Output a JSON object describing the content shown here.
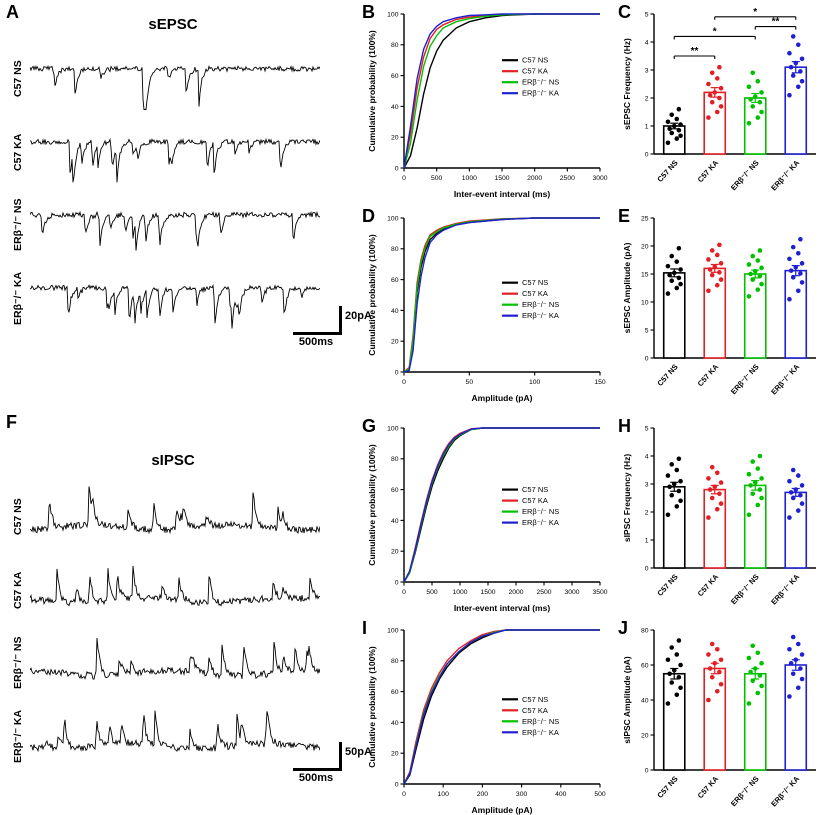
{
  "figure": {
    "background": "#ffffff"
  },
  "groups": [
    "C57 NS",
    "C57 KA",
    "ERβ⁻/⁻ NS",
    "ERβ⁻/⁻ KA"
  ],
  "colors": {
    "c57_ns": "#000000",
    "c57_ka": "#e31e24",
    "erb_ns": "#00c000",
    "erb_ka": "#2020d0"
  },
  "panels": {
    "A": {
      "letter": "A",
      "title": "sEPSC",
      "traces": [
        {
          "label": "C57 NS",
          "seed": 101,
          "spikes": 9,
          "dir": "down"
        },
        {
          "label": "C57 KA",
          "seed": 202,
          "spikes": 17,
          "dir": "down"
        },
        {
          "label": "ERβ⁻/⁻ NS",
          "seed": 303,
          "spikes": 13,
          "dir": "down"
        },
        {
          "label": "ERβ⁻/⁻ KA",
          "seed": 404,
          "spikes": 21,
          "dir": "down"
        }
      ],
      "scale": {
        "v": "20pA",
        "h": "500ms"
      }
    },
    "F": {
      "letter": "F",
      "title": "sIPSC",
      "traces": [
        {
          "label": "C57 NS",
          "seed": 505,
          "spikes": 13,
          "dir": "up"
        },
        {
          "label": "C57 KA",
          "seed": 606,
          "spikes": 12,
          "dir": "up"
        },
        {
          "label": "ERβ⁻/⁻ NS",
          "seed": 707,
          "spikes": 15,
          "dir": "up"
        },
        {
          "label": "ERβ⁻/⁻ KA",
          "seed": 808,
          "spikes": 14,
          "dir": "up"
        }
      ],
      "scale": {
        "v": "50pA",
        "h": "500ms"
      }
    },
    "B": {
      "letter": "B"
    },
    "C": {
      "letter": "C"
    },
    "D": {
      "letter": "D"
    },
    "E": {
      "letter": "E"
    },
    "G": {
      "letter": "G"
    },
    "H": {
      "letter": "H"
    },
    "I": {
      "letter": "I"
    },
    "J": {
      "letter": "J"
    }
  },
  "chart_data": [
    {
      "id": "B",
      "type": "line",
      "subtype": "cumulative",
      "xlabel": "Inter-event interval (ms)",
      "ylabel": "Cumulative probability (100%)",
      "xlim": [
        0,
        3000
      ],
      "xticks": [
        0,
        500,
        1000,
        1500,
        2000,
        2500,
        3000
      ],
      "ylim": [
        0,
        100
      ],
      "yticks": [
        0,
        20,
        40,
        60,
        80,
        100
      ],
      "legend_pos": [
        0.5,
        0.3
      ],
      "series": [
        {
          "name": "C57 NS",
          "color": "#000000",
          "x": [
            0,
            100,
            200,
            300,
            400,
            500,
            600,
            800,
            1000,
            1250,
            1500,
            2000,
            2500,
            3000
          ],
          "y": [
            0,
            8,
            26,
            48,
            65,
            76,
            83,
            91,
            95,
            97.5,
            99,
            100,
            100,
            100
          ]
        },
        {
          "name": "C57 KA",
          "color": "#e31e24",
          "x": [
            0,
            100,
            200,
            300,
            400,
            500,
            600,
            800,
            1000,
            1250,
            1500,
            2000,
            2500,
            3000
          ],
          "y": [
            0,
            22,
            52,
            72,
            84,
            90,
            93,
            96.5,
            98,
            99,
            99.8,
            100,
            100,
            100
          ]
        },
        {
          "name": "ERβ⁻/⁻ NS",
          "color": "#00c000",
          "x": [
            0,
            100,
            200,
            300,
            400,
            500,
            600,
            800,
            1000,
            1250,
            1500,
            2000,
            2500,
            3000
          ],
          "y": [
            0,
            16,
            44,
            66,
            79,
            86,
            91,
            95,
            97,
            98.5,
            99.5,
            100,
            100,
            100
          ]
        },
        {
          "name": "ERβ⁻/⁻ KA",
          "color": "#2020d0",
          "x": [
            0,
            100,
            200,
            300,
            400,
            500,
            600,
            800,
            1000,
            1250,
            1500,
            2000,
            2500,
            3000
          ],
          "y": [
            0,
            27,
            58,
            77,
            87,
            92,
            95,
            97.5,
            99,
            99.5,
            100,
            100,
            100,
            100
          ]
        }
      ]
    },
    {
      "id": "C",
      "type": "bar",
      "ylabel": "sEPSC Frequency (Hz)",
      "ylim": [
        0,
        5
      ],
      "yticks": [
        0,
        1,
        2,
        3,
        4,
        5
      ],
      "categories": [
        "C57 NS",
        "C57 KA",
        "ERβ⁻/⁻ NS",
        "ERβ⁻/⁻ KA"
      ],
      "colors": [
        "#000000",
        "#e31e24",
        "#00c000",
        "#2020d0"
      ],
      "means": [
        1.0,
        2.2,
        2.0,
        3.1
      ],
      "sem": [
        0.1,
        0.17,
        0.16,
        0.2
      ],
      "points": [
        [
          0.4,
          0.55,
          0.65,
          0.75,
          0.85,
          0.9,
          1.0,
          1.05,
          1.15,
          1.25,
          1.4,
          1.6
        ],
        [
          1.3,
          1.5,
          1.7,
          1.85,
          2.0,
          2.1,
          2.2,
          2.35,
          2.5,
          2.7,
          2.9,
          3.1
        ],
        [
          1.1,
          1.3,
          1.5,
          1.7,
          1.85,
          1.95,
          2.05,
          2.2,
          2.4,
          2.6,
          2.9
        ],
        [
          2.1,
          2.4,
          2.6,
          2.8,
          2.95,
          3.1,
          3.25,
          3.4,
          3.6,
          3.9,
          4.2
        ]
      ],
      "significance": [
        {
          "from": 0,
          "to": 1,
          "label": "**",
          "y": 3.5
        },
        {
          "from": 0,
          "to": 2,
          "label": "*",
          "y": 4.2
        },
        {
          "from": 2,
          "to": 3,
          "label": "**",
          "y": 4.55
        },
        {
          "from": 1,
          "to": 3,
          "label": "*",
          "y": 4.9
        }
      ]
    },
    {
      "id": "D",
      "type": "line",
      "subtype": "cumulative",
      "xlabel": "Amplitude (pA)",
      "ylabel": "Cumulative probability (100%)",
      "xlim": [
        0,
        150
      ],
      "xticks": [
        0,
        50,
        100,
        150
      ],
      "ylim": [
        0,
        100
      ],
      "yticks": [
        0,
        20,
        40,
        60,
        80,
        100
      ],
      "legend_pos": [
        0.5,
        0.42
      ],
      "series": [
        {
          "name": "C57 NS",
          "color": "#000000",
          "x": [
            0,
            4,
            7,
            10,
            13,
            16,
            20,
            25,
            30,
            40,
            50,
            75,
            100,
            150
          ],
          "y": [
            0,
            2,
            18,
            52,
            68,
            78,
            86,
            90,
            92.5,
            95.5,
            97,
            99,
            100,
            100
          ]
        },
        {
          "name": "C57 KA",
          "color": "#e31e24",
          "x": [
            0,
            4,
            7,
            10,
            13,
            16,
            20,
            25,
            30,
            40,
            50,
            75,
            100,
            150
          ],
          "y": [
            0,
            3,
            24,
            58,
            73,
            82,
            89,
            92,
            94,
            96.5,
            98,
            99.5,
            100,
            100
          ]
        },
        {
          "name": "ERβ⁻/⁻ NS",
          "color": "#00c000",
          "x": [
            0,
            4,
            7,
            10,
            13,
            16,
            20,
            25,
            30,
            40,
            50,
            75,
            100,
            150
          ],
          "y": [
            0,
            2,
            21,
            55,
            71,
            80,
            88,
            91,
            93.5,
            96,
            97.5,
            99.3,
            100,
            100
          ]
        },
        {
          "name": "ERβ⁻/⁻ KA",
          "color": "#2020d0",
          "x": [
            0,
            4,
            7,
            10,
            13,
            16,
            20,
            25,
            30,
            40,
            50,
            75,
            100,
            150
          ],
          "y": [
            0,
            1,
            14,
            44,
            62,
            74,
            84,
            89,
            92,
            95.5,
            97,
            99,
            100,
            100
          ]
        }
      ]
    },
    {
      "id": "E",
      "type": "bar",
      "ylabel": "sEPSC Amplitude (pA)",
      "ylim": [
        0,
        25
      ],
      "yticks": [
        0,
        5,
        10,
        15,
        20,
        25
      ],
      "categories": [
        "C57 NS",
        "C57 KA",
        "ERβ⁻/⁻ NS",
        "ERβ⁻/⁻ KA"
      ],
      "colors": [
        "#000000",
        "#e31e24",
        "#00c000",
        "#2020d0"
      ],
      "means": [
        15.2,
        16.0,
        15.0,
        15.6
      ],
      "sem": [
        0.7,
        0.7,
        0.7,
        0.9
      ],
      "points": [
        [
          11.5,
          12.5,
          13.2,
          13.8,
          14.3,
          14.8,
          15.2,
          15.8,
          16.4,
          17.2,
          18.2,
          19.6
        ],
        [
          12,
          13,
          14,
          14.8,
          15.3,
          15.8,
          16.3,
          16.9,
          17.6,
          18.4,
          19.2,
          20.2
        ],
        [
          11,
          12.2,
          13.2,
          14,
          14.6,
          15,
          15.5,
          16.1,
          16.7,
          17.4,
          18.2,
          19.2
        ],
        [
          10.5,
          12,
          13.5,
          14.4,
          15.1,
          15.6,
          16.2,
          16.9,
          17.7,
          18.7,
          19.8,
          21.2
        ]
      ],
      "significance": []
    },
    {
      "id": "G",
      "type": "line",
      "subtype": "cumulative",
      "xlabel": "Inter-event interval (ms)",
      "ylabel": "Cumulative probability (100%)",
      "xlim": [
        0,
        3500
      ],
      "xticks": [
        0,
        500,
        1000,
        1500,
        2000,
        2500,
        3000,
        3500
      ],
      "ylim": [
        0,
        100
      ],
      "yticks": [
        0,
        20,
        40,
        60,
        80,
        100
      ],
      "legend_pos": [
        0.5,
        0.4
      ],
      "series": [
        {
          "name": "C57 NS",
          "color": "#000000",
          "x": [
            0,
            100,
            200,
            300,
            400,
            500,
            600,
            700,
            800,
            900,
            1000,
            1200,
            1400,
            3500
          ],
          "y": [
            0,
            6,
            19,
            34,
            49,
            62,
            72,
            80,
            87,
            92,
            95,
            99,
            100,
            100
          ]
        },
        {
          "name": "C57 KA",
          "color": "#e31e24",
          "x": [
            0,
            100,
            200,
            300,
            400,
            500,
            600,
            700,
            800,
            900,
            1000,
            1200,
            1400,
            3500
          ],
          "y": [
            0,
            7,
            22,
            38,
            53,
            66,
            76,
            84,
            90,
            94,
            96.5,
            99.5,
            100,
            100
          ]
        },
        {
          "name": "ERβ⁻/⁻ NS",
          "color": "#00c000",
          "x": [
            0,
            100,
            200,
            300,
            400,
            500,
            600,
            700,
            800,
            900,
            1000,
            1200,
            1400,
            3500
          ],
          "y": [
            0,
            6,
            20,
            36,
            51,
            64,
            74,
            82,
            88,
            93,
            95.5,
            99,
            100,
            100
          ]
        },
        {
          "name": "ERβ⁻/⁻ KA",
          "color": "#2020d0",
          "x": [
            0,
            100,
            200,
            300,
            400,
            500,
            600,
            700,
            800,
            900,
            1000,
            1200,
            1400,
            3500
          ],
          "y": [
            0,
            7,
            21,
            37,
            52,
            65,
            75,
            83,
            89,
            93.5,
            96,
            99.3,
            100,
            100
          ]
        }
      ]
    },
    {
      "id": "H",
      "type": "bar",
      "ylabel": "sIPSC Frequency (Hz)",
      "ylim": [
        0,
        5
      ],
      "yticks": [
        0,
        1,
        2,
        3,
        4,
        5
      ],
      "categories": [
        "C57 NS",
        "C57 KA",
        "ERβ⁻/⁻ NS",
        "ERβ⁻/⁻ KA"
      ],
      "colors": [
        "#000000",
        "#e31e24",
        "#00c000",
        "#2020d0"
      ],
      "means": [
        2.9,
        2.8,
        2.95,
        2.7
      ],
      "sem": [
        0.16,
        0.15,
        0.17,
        0.14
      ],
      "points": [
        [
          1.9,
          2.2,
          2.4,
          2.6,
          2.75,
          2.9,
          3.0,
          3.1,
          3.3,
          3.5,
          3.7,
          3.9
        ],
        [
          1.8,
          2.1,
          2.3,
          2.5,
          2.65,
          2.8,
          2.9,
          3.05,
          3.2,
          3.4,
          3.6
        ],
        [
          1.9,
          2.25,
          2.5,
          2.65,
          2.8,
          2.95,
          3.05,
          3.2,
          3.35,
          3.55,
          3.8,
          4.0
        ],
        [
          1.8,
          2.05,
          2.3,
          2.5,
          2.6,
          2.7,
          2.8,
          2.95,
          3.1,
          3.3,
          3.5
        ]
      ],
      "significance": []
    },
    {
      "id": "I",
      "type": "line",
      "subtype": "cumulative",
      "xlabel": "Amplitude (pA)",
      "ylabel": "Cumulative probability (100%)",
      "xlim": [
        0,
        500
      ],
      "xticks": [
        0,
        100,
        200,
        300,
        400,
        500
      ],
      "ylim": [
        0,
        100
      ],
      "yticks": [
        0,
        20,
        40,
        60,
        80,
        100
      ],
      "legend_pos": [
        0.5,
        0.45
      ],
      "series": [
        {
          "name": "C57 NS",
          "color": "#000000",
          "x": [
            0,
            15,
            30,
            50,
            70,
            90,
            110,
            140,
            170,
            200,
            230,
            260,
            500
          ],
          "y": [
            0,
            6,
            22,
            42,
            57,
            68,
            76,
            85,
            91,
            95,
            98,
            100,
            100
          ]
        },
        {
          "name": "C57 KA",
          "color": "#e31e24",
          "x": [
            0,
            15,
            30,
            50,
            70,
            90,
            110,
            140,
            170,
            200,
            230,
            260,
            500
          ],
          "y": [
            0,
            8,
            27,
            48,
            62,
            72,
            80,
            88,
            93,
            97,
            99,
            100,
            100
          ]
        },
        {
          "name": "ERβ⁻/⁻ NS",
          "color": "#00c000",
          "x": [
            0,
            15,
            30,
            50,
            70,
            90,
            110,
            140,
            170,
            200,
            230,
            260,
            500
          ],
          "y": [
            0,
            7,
            25,
            46,
            60,
            70,
            78,
            86,
            92,
            96,
            98.5,
            100,
            100
          ]
        },
        {
          "name": "ERβ⁻/⁻ KA",
          "color": "#2020d0",
          "x": [
            0,
            15,
            30,
            50,
            70,
            90,
            110,
            140,
            170,
            200,
            230,
            260,
            500
          ],
          "y": [
            0,
            7,
            24,
            45,
            59,
            69,
            78,
            86,
            92,
            96,
            98,
            100,
            100
          ]
        }
      ]
    },
    {
      "id": "J",
      "type": "bar",
      "ylabel": "sIPSC Amplitude (pA)",
      "ylim": [
        0,
        80
      ],
      "yticks": [
        0,
        20,
        40,
        60,
        80
      ],
      "categories": [
        "C57 NS",
        "C57 KA",
        "ERβ⁻/⁻ NS",
        "ERβ⁻/⁻ KA"
      ],
      "colors": [
        "#000000",
        "#e31e24",
        "#00c000",
        "#2020d0"
      ],
      "means": [
        55,
        58,
        55,
        60
      ],
      "sem": [
        3,
        3,
        3,
        3
      ],
      "points": [
        [
          38,
          43,
          47,
          50,
          53,
          55,
          57,
          60,
          63,
          66,
          70,
          74
        ],
        [
          40,
          45,
          49,
          53,
          56,
          58,
          61,
          63,
          66,
          69,
          72
        ],
        [
          38,
          44,
          48,
          51,
          54,
          56,
          58,
          61,
          64,
          67,
          71
        ],
        [
          42,
          47,
          52,
          55,
          58,
          61,
          63,
          66,
          69,
          72,
          76
        ]
      ],
      "significance": []
    }
  ]
}
